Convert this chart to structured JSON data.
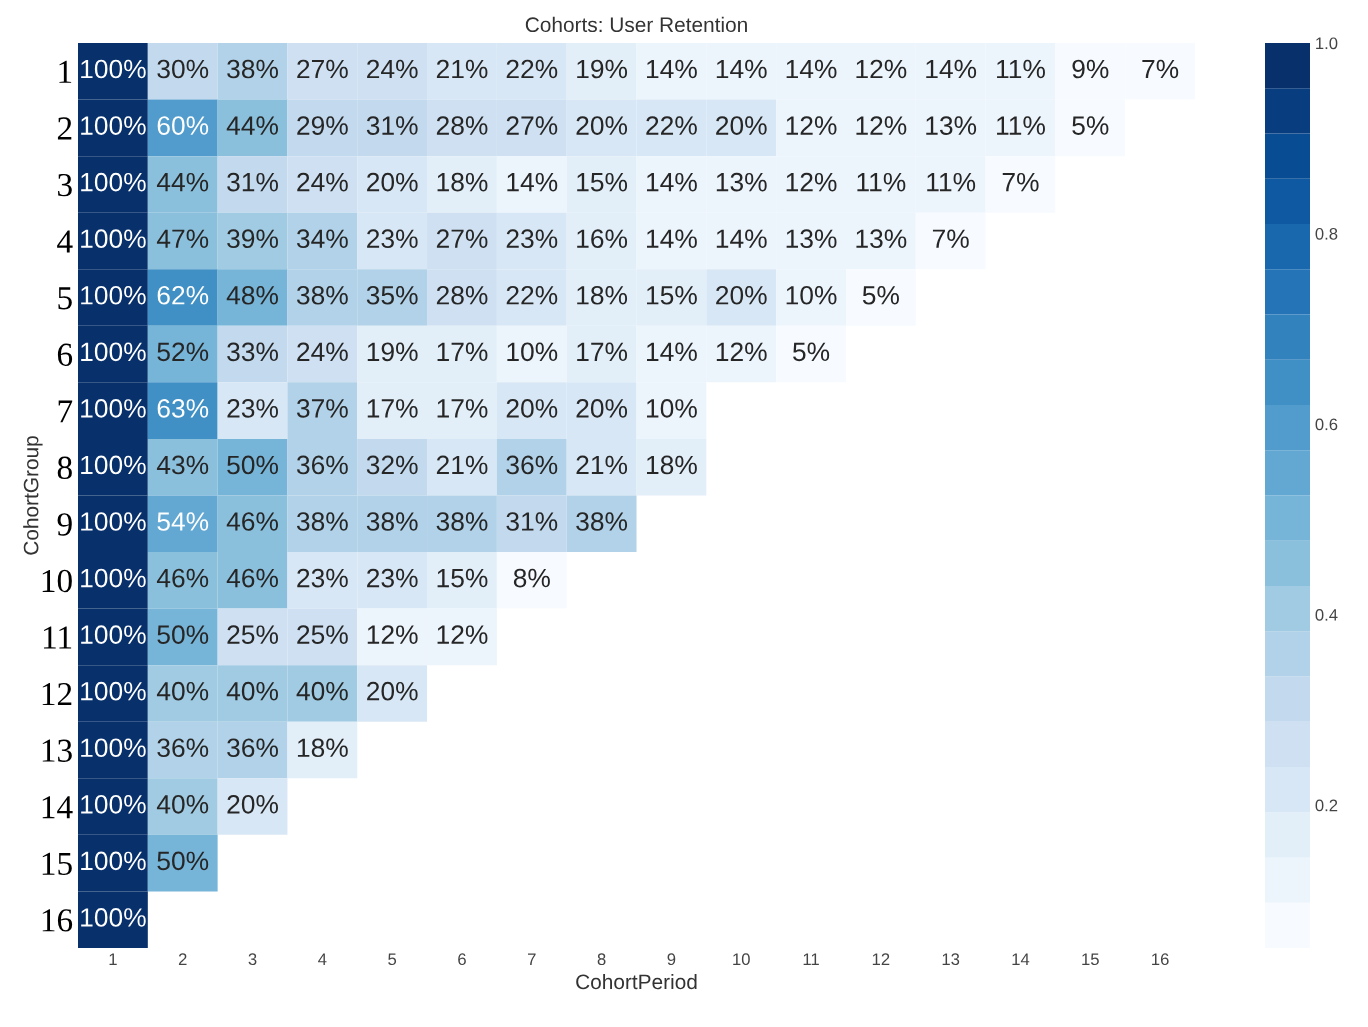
{
  "chart_data": {
    "type": "heatmap",
    "title": "Cohorts: User Retention",
    "xlabel": "CohortPeriod",
    "ylabel": "CohortGroup",
    "categories": [
      "1",
      "2",
      "3",
      "4",
      "5",
      "6",
      "7",
      "8",
      "9",
      "10",
      "11",
      "12",
      "13",
      "14",
      "15",
      "16"
    ],
    "y_categories": [
      "1",
      "2",
      "3",
      "4",
      "5",
      "6",
      "7",
      "8",
      "9",
      "10",
      "11",
      "12",
      "13",
      "14",
      "15",
      "16"
    ],
    "cells": [
      [
        1.0,
        0.3,
        0.38,
        0.27,
        0.24,
        0.21,
        0.22,
        0.19,
        0.14,
        0.14,
        0.14,
        0.12,
        0.14,
        0.11,
        0.09,
        0.07
      ],
      [
        1.0,
        0.6,
        0.44,
        0.29,
        0.31,
        0.28,
        0.27,
        0.2,
        0.22,
        0.2,
        0.12,
        0.12,
        0.13,
        0.11,
        0.05,
        null
      ],
      [
        1.0,
        0.44,
        0.31,
        0.24,
        0.2,
        0.18,
        0.14,
        0.15,
        0.14,
        0.13,
        0.12,
        0.11,
        0.11,
        0.07,
        null,
        null
      ],
      [
        1.0,
        0.47,
        0.39,
        0.34,
        0.23,
        0.27,
        0.23,
        0.16,
        0.14,
        0.14,
        0.13,
        0.13,
        0.07,
        null,
        null,
        null
      ],
      [
        1.0,
        0.62,
        0.48,
        0.38,
        0.35,
        0.28,
        0.22,
        0.18,
        0.15,
        0.2,
        0.1,
        0.05,
        null,
        null,
        null,
        null
      ],
      [
        1.0,
        0.52,
        0.33,
        0.24,
        0.19,
        0.17,
        0.1,
        0.17,
        0.14,
        0.12,
        0.05,
        null,
        null,
        null,
        null,
        null
      ],
      [
        1.0,
        0.63,
        0.23,
        0.37,
        0.17,
        0.17,
        0.2,
        0.2,
        0.1,
        null,
        null,
        null,
        null,
        null,
        null,
        null
      ],
      [
        1.0,
        0.43,
        0.5,
        0.36,
        0.32,
        0.21,
        0.36,
        0.21,
        0.18,
        null,
        null,
        null,
        null,
        null,
        null,
        null
      ],
      [
        1.0,
        0.54,
        0.46,
        0.38,
        0.38,
        0.38,
        0.31,
        0.38,
        null,
        null,
        null,
        null,
        null,
        null,
        null,
        null
      ],
      [
        1.0,
        0.46,
        0.46,
        0.23,
        0.23,
        0.15,
        0.08,
        null,
        null,
        null,
        null,
        null,
        null,
        null,
        null,
        null
      ],
      [
        1.0,
        0.5,
        0.25,
        0.25,
        0.12,
        0.12,
        null,
        null,
        null,
        null,
        null,
        null,
        null,
        null,
        null,
        null
      ],
      [
        1.0,
        0.4,
        0.4,
        0.4,
        0.2,
        null,
        null,
        null,
        null,
        null,
        null,
        null,
        null,
        null,
        null,
        null
      ],
      [
        1.0,
        0.36,
        0.36,
        0.18,
        null,
        null,
        null,
        null,
        null,
        null,
        null,
        null,
        null,
        null,
        null,
        null
      ],
      [
        1.0,
        0.4,
        0.2,
        null,
        null,
        null,
        null,
        null,
        null,
        null,
        null,
        null,
        null,
        null,
        null,
        null
      ],
      [
        1.0,
        0.5,
        null,
        null,
        null,
        null,
        null,
        null,
        null,
        null,
        null,
        null,
        null,
        null,
        null,
        null
      ],
      [
        1.0,
        null,
        null,
        null,
        null,
        null,
        null,
        null,
        null,
        null,
        null,
        null,
        null,
        null,
        null,
        null
      ]
    ],
    "cell_labels": [
      [
        "100%",
        "30%",
        "38%",
        "27%",
        "24%",
        "21%",
        "22%",
        "19%",
        "14%",
        "14%",
        "14%",
        "12%",
        "14%",
        "11%",
        "9%",
        "7%"
      ],
      [
        "100%",
        "60%",
        "44%",
        "29%",
        "31%",
        "28%",
        "27%",
        "20%",
        "22%",
        "20%",
        "12%",
        "12%",
        "13%",
        "11%",
        "5%",
        null
      ],
      [
        "100%",
        "44%",
        "31%",
        "24%",
        "20%",
        "18%",
        "14%",
        "15%",
        "14%",
        "13%",
        "12%",
        "11%",
        "11%",
        "7%",
        null,
        null
      ],
      [
        "100%",
        "47%",
        "39%",
        "34%",
        "23%",
        "27%",
        "23%",
        "16%",
        "14%",
        "14%",
        "13%",
        "13%",
        "7%",
        null,
        null,
        null
      ],
      [
        "100%",
        "62%",
        "48%",
        "38%",
        "35%",
        "28%",
        "22%",
        "18%",
        "15%",
        "20%",
        "10%",
        "5%",
        null,
        null,
        null,
        null
      ],
      [
        "100%",
        "52%",
        "33%",
        "24%",
        "19%",
        "17%",
        "10%",
        "17%",
        "14%",
        "12%",
        "5%",
        null,
        null,
        null,
        null,
        null
      ],
      [
        "100%",
        "63%",
        "23%",
        "37%",
        "17%",
        "17%",
        "20%",
        "20%",
        "10%",
        null,
        null,
        null,
        null,
        null,
        null,
        null
      ],
      [
        "100%",
        "43%",
        "50%",
        "36%",
        "32%",
        "21%",
        "36%",
        "21%",
        "18%",
        null,
        null,
        null,
        null,
        null,
        null,
        null
      ],
      [
        "100%",
        "54%",
        "46%",
        "38%",
        "38%",
        "38%",
        "31%",
        "38%",
        null,
        null,
        null,
        null,
        null,
        null,
        null,
        null
      ],
      [
        "100%",
        "46%",
        "46%",
        "23%",
        "23%",
        "15%",
        "8%",
        null,
        null,
        null,
        null,
        null,
        null,
        null,
        null,
        null
      ],
      [
        "100%",
        "50%",
        "25%",
        "25%",
        "12%",
        "12%",
        null,
        null,
        null,
        null,
        null,
        null,
        null,
        null,
        null,
        null
      ],
      [
        "100%",
        "40%",
        "40%",
        "40%",
        "20%",
        null,
        null,
        null,
        null,
        null,
        null,
        null,
        null,
        null,
        null,
        null
      ],
      [
        "100%",
        "36%",
        "36%",
        "18%",
        null,
        null,
        null,
        null,
        null,
        null,
        null,
        null,
        null,
        null,
        null,
        null
      ],
      [
        "100%",
        "40%",
        "20%",
        null,
        null,
        null,
        null,
        null,
        null,
        null,
        null,
        null,
        null,
        null,
        null,
        null
      ],
      [
        "100%",
        "50%",
        null,
        null,
        null,
        null,
        null,
        null,
        null,
        null,
        null,
        null,
        null,
        null,
        null,
        null
      ],
      [
        "100%",
        null,
        null,
        null,
        null,
        null,
        null,
        null,
        null,
        null,
        null,
        null,
        null,
        null,
        null,
        null
      ]
    ],
    "clim": [
      0.05,
      1.0
    ],
    "cticks": [
      0.2,
      0.4,
      0.6,
      0.8,
      {
        "value": 1.0,
        "label": "1.0"
      }
    ]
  }
}
